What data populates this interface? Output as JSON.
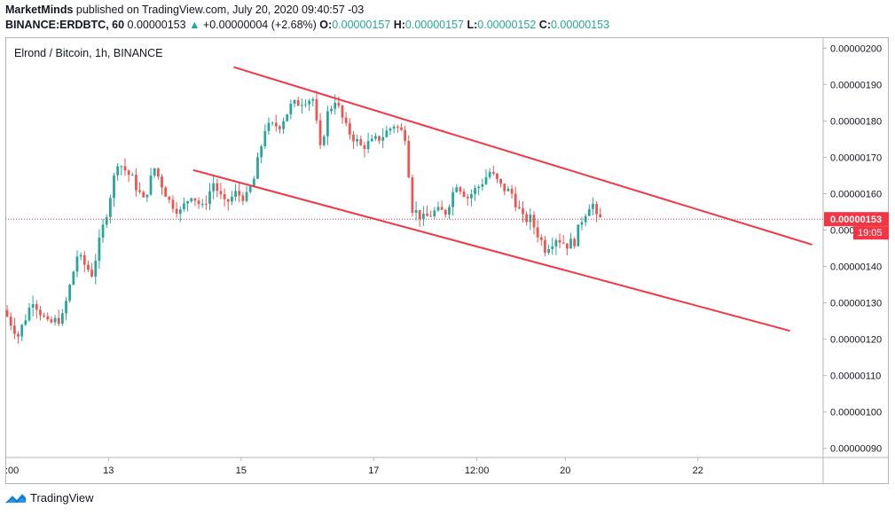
{
  "header": {
    "author": "MarketMinds",
    "published_text": "published on TradingView.com, July 20, 2020 09:40:57 -03",
    "symbol": "BINANCE:ERDBTC, 60",
    "last_price": "0.00000153",
    "change_arrow": "▲",
    "change_text": "+0.00000004 (+2.68%)",
    "o_label": "O:",
    "o_value": "0.00000157",
    "h_label": "H:",
    "h_value": "0.00000157",
    "l_label": "L:",
    "l_value": "0.00000152",
    "c_label": "C:",
    "c_value": "0.00000153"
  },
  "footer": {
    "brand": "TradingView",
    "logo_icon": "tradingview-logo-icon"
  },
  "colors": {
    "up": "#26a69a",
    "down": "#ef5350",
    "trendline": "#f23645",
    "price_badge": "#f23645",
    "grid_border": "#b2b5be"
  },
  "chart_data": {
    "type": "candlestick",
    "title": "Elrond / Bitcoin, 1h, BINANCE",
    "y_axis": {
      "ticks": [
        "0.00000200",
        "0.00000190",
        "0.00000180",
        "0.00000170",
        "0.00000160",
        "0.00000150",
        "0.00000140",
        "0.00000130",
        "0.00000120",
        "0.00000110",
        "0.00000100",
        "0.00000090"
      ],
      "tick_values": [
        2.0,
        1.9,
        1.8,
        1.7,
        1.6,
        1.5,
        1.4,
        1.3,
        1.2,
        1.1,
        1.0,
        0.9
      ],
      "unit_note": "values in 1e-6 BTC",
      "ylim": [
        0.875,
        2.03
      ]
    },
    "x_axis": {
      "tick_labels": [
        ":00",
        "13",
        "15",
        "17",
        "12:00",
        "20",
        "22"
      ],
      "tick_index": [
        0,
        28,
        64,
        100,
        128,
        152,
        188
      ],
      "xlim": [
        0,
        222
      ]
    },
    "current_price": {
      "value": 1.53,
      "label": "0.00000153",
      "timer": "19:05"
    },
    "trend_lines": [
      {
        "name": "upper",
        "points": [
          [
            62,
            1.948
          ],
          [
            219,
            1.46
          ]
        ]
      },
      {
        "name": "lower",
        "points": [
          [
            51,
            1.665
          ],
          [
            213,
            1.223
          ]
        ]
      }
    ],
    "anchors": [
      [
        0,
        1.28
      ],
      [
        4,
        1.21
      ],
      [
        8,
        1.31
      ],
      [
        12,
        1.24
      ],
      [
        16,
        1.26
      ],
      [
        20,
        1.43
      ],
      [
        24,
        1.38
      ],
      [
        28,
        1.55
      ],
      [
        31,
        1.69
      ],
      [
        35,
        1.64
      ],
      [
        38,
        1.58
      ],
      [
        41,
        1.67
      ],
      [
        45,
        1.58
      ],
      [
        48,
        1.55
      ],
      [
        51,
        1.6
      ],
      [
        54,
        1.56
      ],
      [
        57,
        1.63
      ],
      [
        60,
        1.57
      ],
      [
        63,
        1.6
      ],
      [
        66,
        1.59
      ],
      [
        68,
        1.64
      ],
      [
        71,
        1.78
      ],
      [
        75,
        1.79
      ],
      [
        78,
        1.84
      ],
      [
        82,
        1.86
      ],
      [
        84,
        1.86
      ],
      [
        86,
        1.72
      ],
      [
        88,
        1.82
      ],
      [
        90,
        1.86
      ],
      [
        93,
        1.78
      ],
      [
        97,
        1.73
      ],
      [
        100,
        1.74
      ],
      [
        103,
        1.76
      ],
      [
        106,
        1.79
      ],
      [
        109,
        1.76
      ],
      [
        111,
        1.56
      ],
      [
        114,
        1.53
      ],
      [
        117,
        1.55
      ],
      [
        120,
        1.55
      ],
      [
        123,
        1.63
      ],
      [
        126,
        1.59
      ],
      [
        129,
        1.62
      ],
      [
        132,
        1.66
      ],
      [
        135,
        1.62
      ],
      [
        138,
        1.6
      ],
      [
        141,
        1.53
      ],
      [
        143,
        1.53
      ],
      [
        145,
        1.49
      ],
      [
        147,
        1.45
      ],
      [
        150,
        1.48
      ],
      [
        153,
        1.46
      ],
      [
        155,
        1.47
      ],
      [
        157,
        1.53
      ],
      [
        159,
        1.57
      ],
      [
        160,
        1.57
      ],
      [
        161,
        1.53
      ]
    ]
  }
}
